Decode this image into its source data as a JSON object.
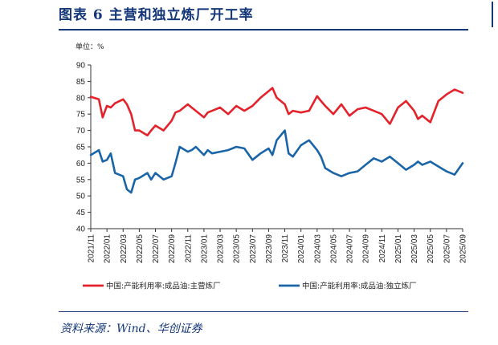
{
  "header": {
    "title": "图表 6    主营和独立炼厂开工率"
  },
  "footer": {
    "source": "资料来源：Wind、华创证券"
  },
  "chart_data": {
    "type": "line",
    "unit_label": "单位：%",
    "ylim": [
      40,
      90
    ],
    "yticks": [
      40,
      45,
      50,
      55,
      60,
      65,
      70,
      75,
      80,
      85,
      90
    ],
    "xlim": [
      "2021/11",
      "2025/09"
    ],
    "xticks": [
      "2021/11",
      "2022/01",
      "2022/03",
      "2022/05",
      "2022/07",
      "2022/09",
      "2022/11",
      "2023/01",
      "2023/03",
      "2023/05",
      "2023/07",
      "2023/09",
      "2023/11",
      "2024/01",
      "2024/03",
      "2024/05",
      "2024/07",
      "2024/09",
      "2024/11",
      "2025/01",
      "2025/03",
      "2025/05",
      "2025/07",
      "2025/09"
    ],
    "grid": false,
    "legend_position": "bottom",
    "series": [
      {
        "name": "中国:产能利用率:成品油:主营炼厂",
        "color": "#e3222b",
        "points": [
          [
            "2021/11",
            80.3
          ],
          [
            "2021/12",
            79.5
          ],
          [
            "2021/12",
            74
          ],
          [
            "2022/01",
            77.5
          ],
          [
            "2022/01",
            77
          ],
          [
            "2022/02",
            78.3
          ],
          [
            "2022/03",
            79.5
          ],
          [
            "2022/03",
            78
          ],
          [
            "2022/04",
            75
          ],
          [
            "2022/04",
            70
          ],
          [
            "2022/05",
            70
          ],
          [
            "2022/06",
            68.5
          ],
          [
            "2022/06",
            70
          ],
          [
            "2022/07",
            71.5
          ],
          [
            "2022/08",
            70
          ],
          [
            "2022/09",
            73
          ],
          [
            "2022/09",
            75.5
          ],
          [
            "2022/10",
            76
          ],
          [
            "2022/11",
            78
          ],
          [
            "2022/11",
            77
          ],
          [
            "2022/12",
            76
          ],
          [
            "2023/01",
            74
          ],
          [
            "2023/01",
            75.5
          ],
          [
            "2023/02",
            76
          ],
          [
            "2023/03",
            77
          ],
          [
            "2023/04",
            75
          ],
          [
            "2023/05",
            77.5
          ],
          [
            "2023/06",
            76
          ],
          [
            "2023/07",
            77.5
          ],
          [
            "2023/08",
            80
          ],
          [
            "2023/09",
            82
          ],
          [
            "2023/09",
            83
          ],
          [
            "2023/10",
            80
          ],
          [
            "2023/11",
            78
          ],
          [
            "2023/11",
            75
          ],
          [
            "2023/12",
            76
          ],
          [
            "2024/01",
            75.5
          ],
          [
            "2024/02",
            76
          ],
          [
            "2024/03",
            80.5
          ],
          [
            "2024/03",
            79
          ],
          [
            "2024/04",
            77.5
          ],
          [
            "2024/05",
            75
          ],
          [
            "2024/06",
            78
          ],
          [
            "2024/07",
            74.5
          ],
          [
            "2024/08",
            76.5
          ],
          [
            "2024/09",
            77
          ],
          [
            "2024/10",
            76
          ],
          [
            "2024/11",
            75
          ],
          [
            "2024/12",
            72
          ],
          [
            "2025/01",
            77
          ],
          [
            "2025/02",
            79
          ],
          [
            "2025/03",
            76
          ],
          [
            "2025/03",
            73.5
          ],
          [
            "2025/04",
            74.5
          ],
          [
            "2025/05",
            72.5
          ],
          [
            "2025/06",
            79
          ],
          [
            "2025/07",
            81
          ],
          [
            "2025/08",
            82.5
          ],
          [
            "2025/09",
            81.5
          ]
        ]
      },
      {
        "name": "中国:产能利用率:成品油:独立炼厂",
        "color": "#1a64a8",
        "points": [
          [
            "2021/11",
            62.5
          ],
          [
            "2021/12",
            64
          ],
          [
            "2021/12",
            60.5
          ],
          [
            "2022/01",
            61
          ],
          [
            "2022/01",
            63
          ],
          [
            "2022/02",
            57
          ],
          [
            "2022/03",
            56
          ],
          [
            "2022/03",
            52
          ],
          [
            "2022/04",
            51
          ],
          [
            "2022/04",
            55
          ],
          [
            "2022/05",
            55.5
          ],
          [
            "2022/06",
            57
          ],
          [
            "2022/06",
            55
          ],
          [
            "2022/07",
            57
          ],
          [
            "2022/08",
            55
          ],
          [
            "2022/09",
            56
          ],
          [
            "2022/09",
            60
          ],
          [
            "2022/10",
            65
          ],
          [
            "2022/11",
            63.5
          ],
          [
            "2022/11",
            64
          ],
          [
            "2022/12",
            65
          ],
          [
            "2023/01",
            62.5
          ],
          [
            "2023/01",
            64
          ],
          [
            "2023/02",
            63
          ],
          [
            "2023/03",
            63.5
          ],
          [
            "2023/04",
            64
          ],
          [
            "2023/05",
            65
          ],
          [
            "2023/06",
            64.5
          ],
          [
            "2023/07",
            61
          ],
          [
            "2023/08",
            63
          ],
          [
            "2023/09",
            64.5
          ],
          [
            "2023/09",
            62.5
          ],
          [
            "2023/10",
            67
          ],
          [
            "2023/11",
            70
          ],
          [
            "2023/11",
            63
          ],
          [
            "2023/12",
            62
          ],
          [
            "2024/01",
            65.5
          ],
          [
            "2024/02",
            67
          ],
          [
            "2024/03",
            64
          ],
          [
            "2024/03",
            62
          ],
          [
            "2024/04",
            58.5
          ],
          [
            "2024/05",
            57
          ],
          [
            "2024/06",
            56
          ],
          [
            "2024/07",
            57
          ],
          [
            "2024/08",
            57.5
          ],
          [
            "2024/09",
            59.5
          ],
          [
            "2024/10",
            61.5
          ],
          [
            "2024/11",
            60.5
          ],
          [
            "2024/12",
            62
          ],
          [
            "2025/01",
            60
          ],
          [
            "2025/02",
            58
          ],
          [
            "2025/03",
            59.5
          ],
          [
            "2025/03",
            60.5
          ],
          [
            "2025/04",
            59.5
          ],
          [
            "2025/05",
            60.5
          ],
          [
            "2025/06",
            59
          ],
          [
            "2025/07",
            57.5
          ],
          [
            "2025/08",
            56.5
          ],
          [
            "2025/09",
            60
          ]
        ]
      }
    ]
  }
}
